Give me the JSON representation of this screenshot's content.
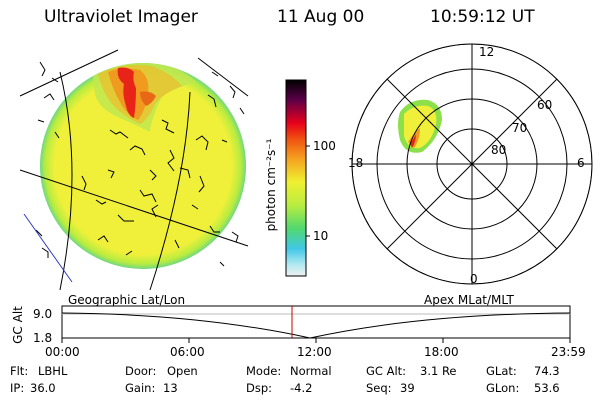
{
  "header": {
    "instrument": "Ultraviolet Imager",
    "date": "11 Aug 00",
    "time": "10:59:12 UT"
  },
  "colorbar": {
    "unit_label": "photon cm⁻²s⁻¹",
    "ticks": [
      "100",
      "10"
    ]
  },
  "polar_plot": {
    "top_label": "12",
    "bottom_label": "0",
    "left_label": "18",
    "right_label": "6",
    "lat_labels": [
      "60",
      "70",
      "80"
    ]
  },
  "altitude_plot": {
    "axis_label": "GC Alt",
    "y_ticks": [
      "9.0",
      "1.8"
    ],
    "left_caption": "Geographic Lat/Lon",
    "right_caption": "Apex MLat/MLT",
    "x_ticks": [
      "00:00",
      "06:00",
      "12:00",
      "18:00",
      "23:59"
    ],
    "current_marker_color": "#cc0000"
  },
  "status": {
    "flt_label": "Flt:",
    "flt_value": "LBHL",
    "ip_label": "IP:",
    "ip_value": "36.0",
    "door_label": "Door:",
    "door_value": "Open",
    "gain_label": "Gain:",
    "gain_value": "13",
    "mode_label": "Mode:",
    "mode_value": "Normal",
    "dsp_label": "Dsp:",
    "dsp_value": "-4.2",
    "gcalt_label": "GC Alt:",
    "gcalt_value": "3.1 Re",
    "seq_label": "Seq:",
    "seq_value": "39",
    "glat_label": "GLat:",
    "glat_value": "74.3",
    "glon_label": "GLon:",
    "glon_value": "53.6"
  },
  "colors": {
    "background": "#ffffff",
    "earth_fill": "#f0f03a",
    "aurora_orange": "#f0a020",
    "aurora_red": "#e01818",
    "limb_green": "#8ce04a",
    "limb_cyan": "#58d0e8"
  }
}
